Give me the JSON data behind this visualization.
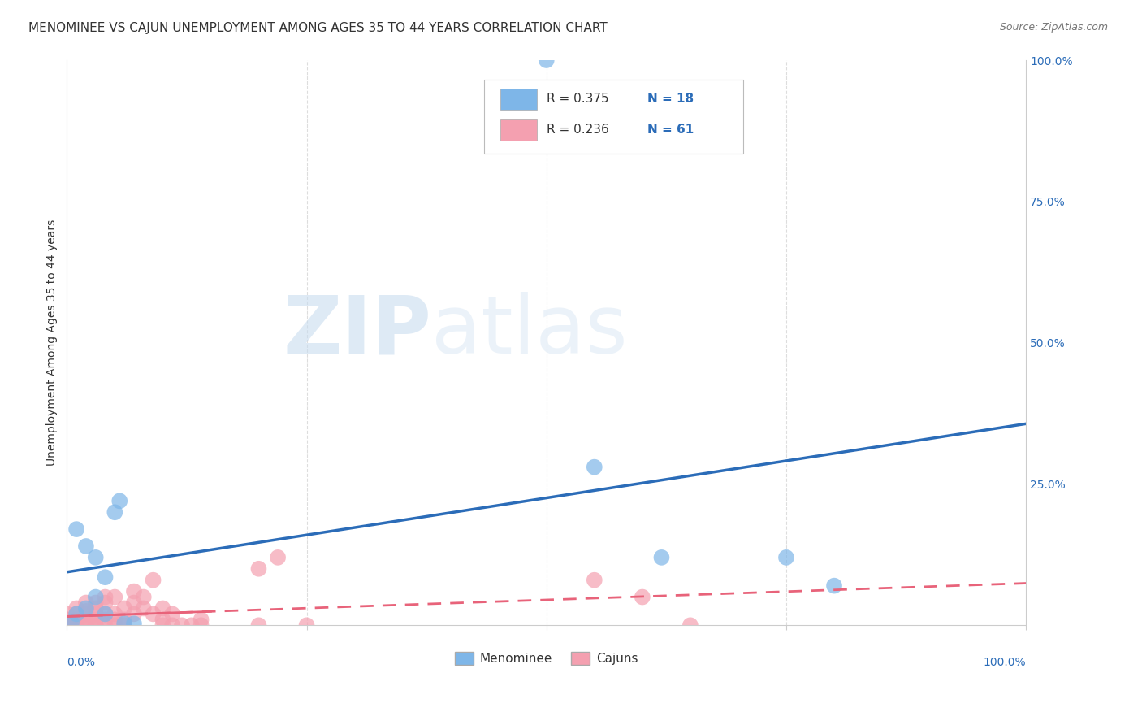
{
  "title": "MENOMINEE VS CAJUN UNEMPLOYMENT AMONG AGES 35 TO 44 YEARS CORRELATION CHART",
  "source": "Source: ZipAtlas.com",
  "ylabel": "Unemployment Among Ages 35 to 44 years",
  "xlim": [
    0,
    1
  ],
  "ylim": [
    0,
    1
  ],
  "ytick_labels": [
    "",
    "25.0%",
    "50.0%",
    "75.0%",
    "100.0%"
  ],
  "ytick_values": [
    0,
    0.25,
    0.5,
    0.75,
    1.0
  ],
  "legend_label1": "Menominee",
  "legend_label2": "Cajuns",
  "menominee_color": "#7EB6E8",
  "cajun_color": "#F4A0B0",
  "menominee_line_color": "#2B6CB8",
  "cajun_line_color": "#E8637A",
  "menominee_x": [
    0.005,
    0.01,
    0.01,
    0.02,
    0.02,
    0.03,
    0.03,
    0.04,
    0.04,
    0.05,
    0.055,
    0.06,
    0.07,
    0.55,
    0.62,
    0.75,
    0.8,
    0.5
  ],
  "menominee_y": [
    0.005,
    0.02,
    0.17,
    0.03,
    0.14,
    0.05,
    0.12,
    0.02,
    0.085,
    0.2,
    0.22,
    0.003,
    0.003,
    0.28,
    0.12,
    0.12,
    0.07,
    1.0
  ],
  "cajun_x": [
    0.0,
    0.0,
    0.0,
    0.0,
    0.0,
    0.0,
    0.0,
    0.0,
    0.005,
    0.01,
    0.01,
    0.01,
    0.01,
    0.01,
    0.02,
    0.02,
    0.02,
    0.02,
    0.02,
    0.02,
    0.03,
    0.03,
    0.03,
    0.03,
    0.03,
    0.03,
    0.04,
    0.04,
    0.04,
    0.04,
    0.04,
    0.05,
    0.05,
    0.05,
    0.05,
    0.06,
    0.06,
    0.06,
    0.07,
    0.07,
    0.07,
    0.08,
    0.08,
    0.09,
    0.09,
    0.1,
    0.1,
    0.1,
    0.11,
    0.11,
    0.12,
    0.13,
    0.14,
    0.14,
    0.2,
    0.2,
    0.22,
    0.25,
    0.55,
    0.6,
    0.65
  ],
  "cajun_y": [
    0.0,
    0.0,
    0.0,
    0.0,
    0.005,
    0.01,
    0.01,
    0.02,
    0.0,
    0.0,
    0.0,
    0.01,
    0.02,
    0.03,
    0.0,
    0.0,
    0.01,
    0.02,
    0.025,
    0.04,
    0.0,
    0.0,
    0.01,
    0.02,
    0.03,
    0.04,
    0.0,
    0.01,
    0.02,
    0.04,
    0.05,
    0.0,
    0.01,
    0.02,
    0.05,
    0.0,
    0.01,
    0.03,
    0.02,
    0.04,
    0.06,
    0.03,
    0.05,
    0.02,
    0.08,
    0.0,
    0.01,
    0.03,
    0.0,
    0.02,
    0.0,
    0.0,
    0.0,
    0.01,
    0.0,
    0.1,
    0.12,
    0.0,
    0.08,
    0.05,
    0.0
  ],
  "background_color": "#FFFFFF",
  "grid_color": "#DDDDDD",
  "title_fontsize": 11,
  "axis_label_fontsize": 10,
  "tick_fontsize": 10,
  "source_fontsize": 9,
  "r_label_color": "#333333",
  "n_label_color": "#2B6CB8",
  "legend_r1": "R = 0.375",
  "legend_n1": "N = 18",
  "legend_r2": "R = 0.236",
  "legend_n2": "N = 61"
}
